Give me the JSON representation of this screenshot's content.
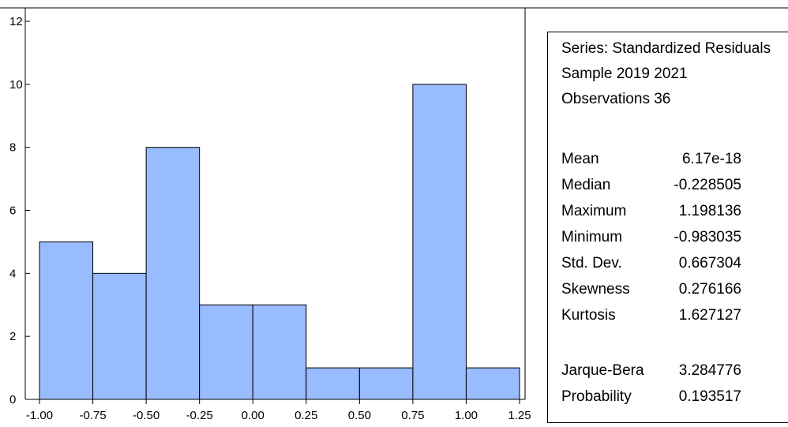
{
  "chart_data": {
    "type": "bar",
    "bins": [
      {
        "from": -1.0,
        "to": -0.75,
        "count": 5
      },
      {
        "from": -0.75,
        "to": -0.5,
        "count": 4
      },
      {
        "from": -0.5,
        "to": -0.25,
        "count": 8
      },
      {
        "from": -0.25,
        "to": 0.0,
        "count": 3
      },
      {
        "from": 0.0,
        "to": 0.25,
        "count": 3
      },
      {
        "from": 0.25,
        "to": 0.5,
        "count": 1
      },
      {
        "from": 0.5,
        "to": 0.75,
        "count": 1
      },
      {
        "from": 0.75,
        "to": 1.0,
        "count": 10
      },
      {
        "from": 1.0,
        "to": 1.25,
        "count": 1
      }
    ],
    "xlim": [
      -1.0,
      1.25
    ],
    "ylim": [
      0,
      12
    ],
    "x_tick_labels": [
      "-1.00",
      "-0.75",
      "-0.50",
      "-0.25",
      "0.00",
      "0.25",
      "0.50",
      "0.75",
      "1.00",
      "1.25"
    ],
    "y_tick_labels": [
      "0",
      "2",
      "4",
      "6",
      "8",
      "10",
      "12"
    ],
    "bar_color": "#99bbff",
    "grid": false
  },
  "stats": {
    "series": "Series: Standardized Residuals",
    "sample": "Sample 2019 2021",
    "observations": "Observations 36",
    "rows": [
      {
        "label": "Mean",
        "value": "6.17e-18"
      },
      {
        "label": "Median",
        "value": "-0.228505"
      },
      {
        "label": "Maximum",
        "value": "1.198136"
      },
      {
        "label": "Minimum",
        "value": "-0.983035"
      },
      {
        "label": "Std. Dev.",
        "value": "0.667304"
      },
      {
        "label": "Skewness",
        "value": "0.276166"
      },
      {
        "label": "Kurtosis",
        "value": "1.627127"
      }
    ],
    "test_rows": [
      {
        "label": "Jarque-Bera",
        "value": "3.284776"
      },
      {
        "label": "Probability",
        "value": "0.193517"
      }
    ]
  }
}
